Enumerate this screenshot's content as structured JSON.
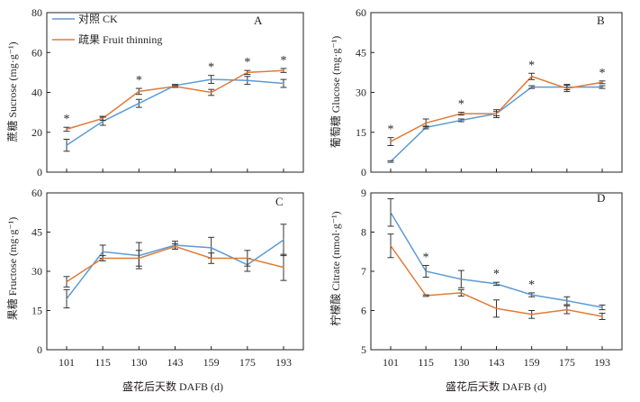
{
  "legend": [
    {
      "label": "对照 CK",
      "color": "#5b9bd5"
    },
    {
      "label": "疏果 Fruit thinning",
      "color": "#e07b39"
    }
  ],
  "shared_xlabel": "盛花后天数 DAFB (d)",
  "chart_data": [
    {
      "type": "line",
      "panel": "A",
      "x": [
        101,
        115,
        130,
        143,
        159,
        175,
        193
      ],
      "ylabel": "蔗糖 Sucrose (mg·g⁻¹)",
      "ylim": [
        0,
        80
      ],
      "yticks": [
        0,
        20,
        40,
        60,
        80
      ],
      "series": [
        {
          "name": "对照 CK",
          "color": "#5b9bd5",
          "values": [
            13.5,
            25.5,
            34.5,
            43.5,
            46.5,
            46,
            44.5
          ],
          "errors": [
            3,
            2,
            2,
            0.5,
            2,
            2,
            2
          ]
        },
        {
          "name": "疏果 Fruit thinning",
          "color": "#e07b39",
          "values": [
            21.5,
            27,
            40.5,
            43,
            40,
            50,
            51
          ],
          "errors": [
            1,
            1,
            1.5,
            0.5,
            1.5,
            1,
            1
          ]
        }
      ],
      "significance": [
        "*",
        "",
        "*",
        "",
        "*",
        "*",
        "*"
      ]
    },
    {
      "type": "line",
      "panel": "B",
      "x": [
        101,
        115,
        130,
        143,
        159,
        175,
        193
      ],
      "ylabel": "葡萄糖 Glucose (mg·g⁻¹)",
      "ylim": [
        0,
        60
      ],
      "yticks": [
        0,
        15,
        30,
        45,
        60
      ],
      "series": [
        {
          "name": "对照 CK",
          "color": "#5b9bd5",
          "values": [
            4,
            16.8,
            19.5,
            22,
            32,
            32,
            32
          ],
          "errors": [
            0.3,
            0.5,
            0.5,
            0.8,
            0.5,
            1,
            0.5
          ]
        },
        {
          "name": "疏果 Fruit thinning",
          "color": "#e07b39",
          "values": [
            11.5,
            18.5,
            22,
            22,
            36,
            31.5,
            33.8
          ],
          "errors": [
            1.5,
            1.5,
            0.5,
            1.5,
            1.2,
            1.2,
            0.5
          ]
        }
      ],
      "significance": [
        "*",
        "",
        "*",
        "",
        "*",
        "",
        "*"
      ]
    },
    {
      "type": "line",
      "panel": "C",
      "x": [
        101,
        115,
        130,
        143,
        159,
        175,
        193
      ],
      "ylabel": "果糖 Fructose (mg·g⁻¹)",
      "ylim": [
        0,
        60
      ],
      "yticks": [
        0,
        15,
        30,
        45,
        60
      ],
      "series": [
        {
          "name": "对照 CK",
          "color": "#5b9bd5",
          "values": [
            19.5,
            37.5,
            36,
            40,
            39,
            32.5,
            42
          ],
          "errors": [
            3.5,
            2.5,
            5,
            1.5,
            4,
            2.5,
            6
          ]
        },
        {
          "name": "疏果 Fruit thinning",
          "color": "#e07b39",
          "values": [
            26,
            35,
            35,
            39.5,
            35,
            35,
            31.5
          ],
          "errors": [
            2,
            1,
            3,
            1,
            2,
            3,
            5
          ]
        }
      ],
      "significance": [
        "",
        "",
        "",
        "",
        "",
        "",
        ""
      ]
    },
    {
      "type": "line",
      "panel": "D",
      "x": [
        101,
        115,
        130,
        143,
        159,
        175,
        193
      ],
      "ylabel": "柠檬酸 Citrate (nmol·g⁻¹)",
      "ylim": [
        5,
        9
      ],
      "yticks": [
        5,
        6,
        7,
        8,
        9
      ],
      "series": [
        {
          "name": "对照 CK",
          "color": "#5b9bd5",
          "values": [
            8.5,
            7,
            6.8,
            6.68,
            6.4,
            6.25,
            6.08
          ],
          "errors": [
            0.35,
            0.15,
            0.22,
            0.04,
            0.05,
            0.1,
            0.06
          ]
        },
        {
          "name": "疏果 Fruit thinning",
          "color": "#e07b39",
          "values": [
            7.65,
            6.38,
            6.45,
            6.05,
            5.9,
            6.02,
            5.85
          ],
          "errors": [
            0.3,
            0.02,
            0.08,
            0.22,
            0.1,
            0.1,
            0.08
          ]
        }
      ],
      "significance": [
        "",
        "*",
        "",
        "*",
        "*",
        "",
        ""
      ]
    }
  ]
}
